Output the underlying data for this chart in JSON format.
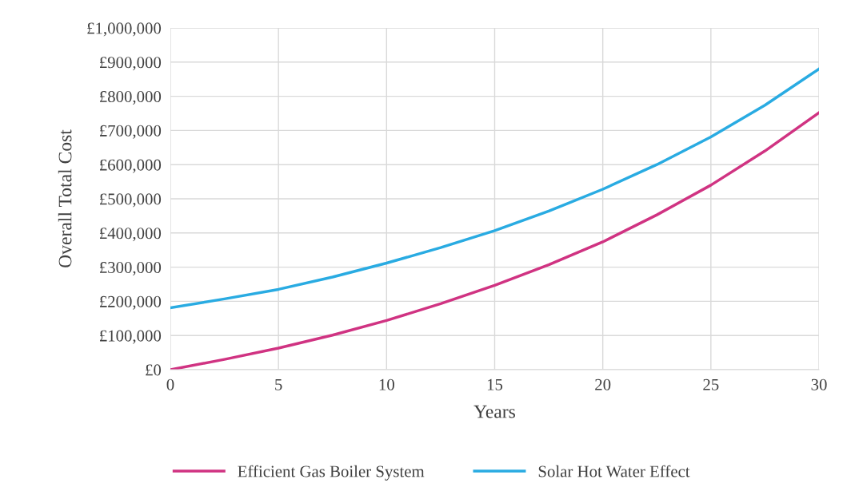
{
  "chart_data": {
    "type": "line",
    "xlabel": "Years",
    "ylabel": "Overall Total Cost",
    "x": [
      0,
      2.5,
      5,
      7.5,
      10,
      12.5,
      15,
      17.5,
      20,
      22.5,
      25,
      27.5,
      30
    ],
    "series": [
      {
        "name": "Efficient Gas Boiler System",
        "color": "#d03382",
        "values": [
          0,
          30000,
          63000,
          101000,
          144000,
          193000,
          247000,
          307000,
          374000,
          453000,
          540000,
          640000,
          752000
        ]
      },
      {
        "name": "Solar Hot Water Effect",
        "color": "#29abe2",
        "values": [
          181000,
          207000,
          235000,
          271000,
          312000,
          357000,
          407000,
          464000,
          528000,
          600000,
          681000,
          774000,
          880000
        ]
      }
    ],
    "xlim": [
      0,
      30
    ],
    "xticks": [
      0,
      5,
      10,
      15,
      20,
      25,
      30
    ],
    "ylim": [
      0,
      1000000
    ],
    "yticks": [
      {
        "value": 0,
        "label": "£0"
      },
      {
        "value": 100000,
        "label": "£100,000"
      },
      {
        "value": 200000,
        "label": "£200,000"
      },
      {
        "value": 300000,
        "label": "£300,000"
      },
      {
        "value": 400000,
        "label": "£400,000"
      },
      {
        "value": 500000,
        "label": "£500,000"
      },
      {
        "value": 600000,
        "label": "£600,000"
      },
      {
        "value": 700000,
        "label": "£700,000"
      },
      {
        "value": 800000,
        "label": "£800,000"
      },
      {
        "value": 900000,
        "label": "£900,000"
      },
      {
        "value": 1000000,
        "label": "£1,000,000"
      }
    ],
    "grid": true,
    "legend": "bottom",
    "marker": "none",
    "line_style": "solid"
  }
}
